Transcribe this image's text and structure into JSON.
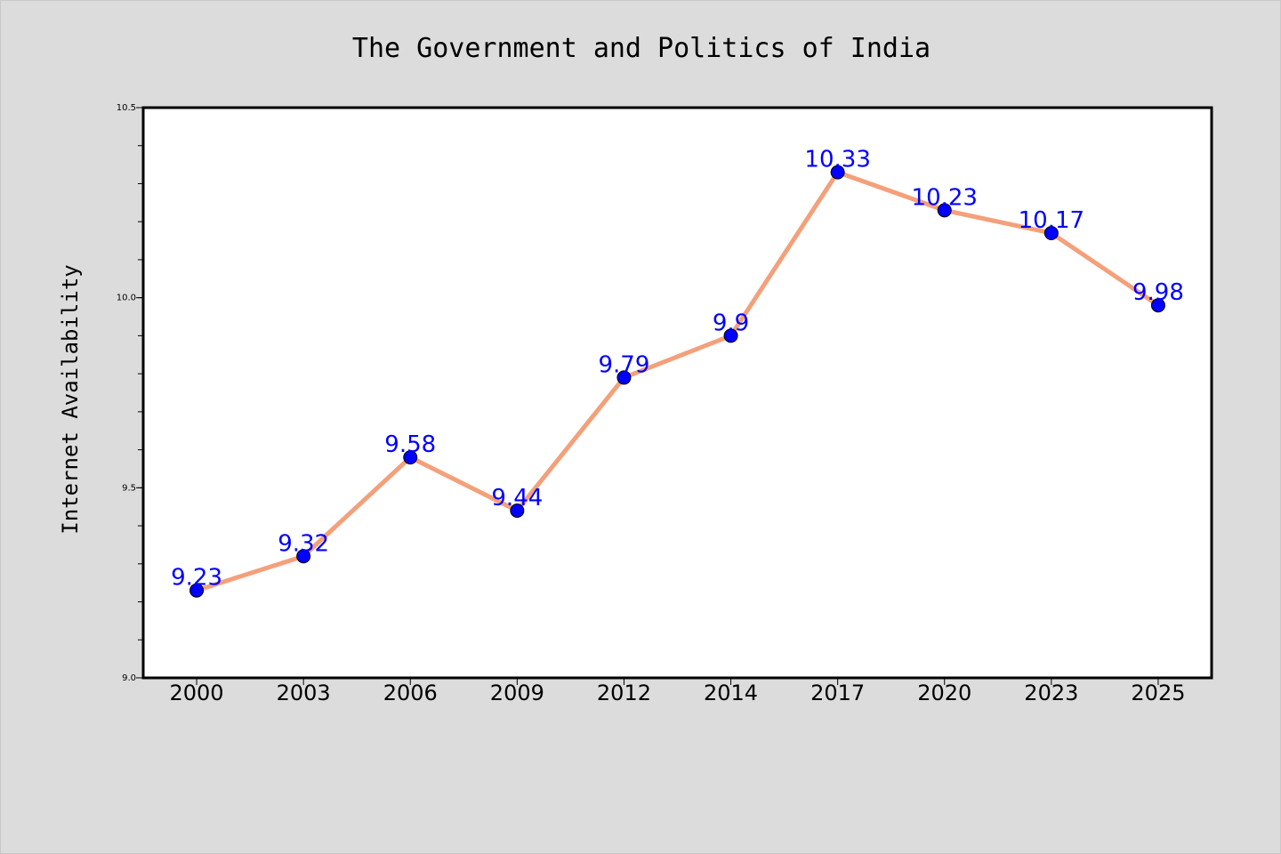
{
  "chart_data": {
    "type": "line",
    "title": "The Government and Politics of India",
    "xlabel": "",
    "ylabel": "Internet Availability",
    "categories": [
      "2000",
      "2003",
      "2006",
      "2009",
      "2012",
      "2014",
      "2017",
      "2020",
      "2023",
      "2025"
    ],
    "series": [
      {
        "values": [
          9.23,
          9.32,
          9.58,
          9.44,
          9.79,
          9.9,
          10.33,
          10.23,
          10.17,
          9.98
        ],
        "labels": [
          "9.23",
          "9.32",
          "9.58",
          "9.44",
          "9.79",
          "9.9",
          "10.33",
          "10.23",
          "10.17",
          "9.98"
        ],
        "line_color": "#f4a07a",
        "marker_color": "#0000ff"
      }
    ],
    "ylim": [
      9.0,
      10.5
    ],
    "yticks": [
      "9.0",
      "9.5",
      "10.0",
      "10.5"
    ],
    "ytick_values": [
      9.0,
      9.5,
      10.0,
      10.5
    ],
    "minor_ytick_step": 0.1,
    "grid": false,
    "legend": "none",
    "background_color": "#dcdcdc",
    "plot_background": "#ffffff"
  }
}
